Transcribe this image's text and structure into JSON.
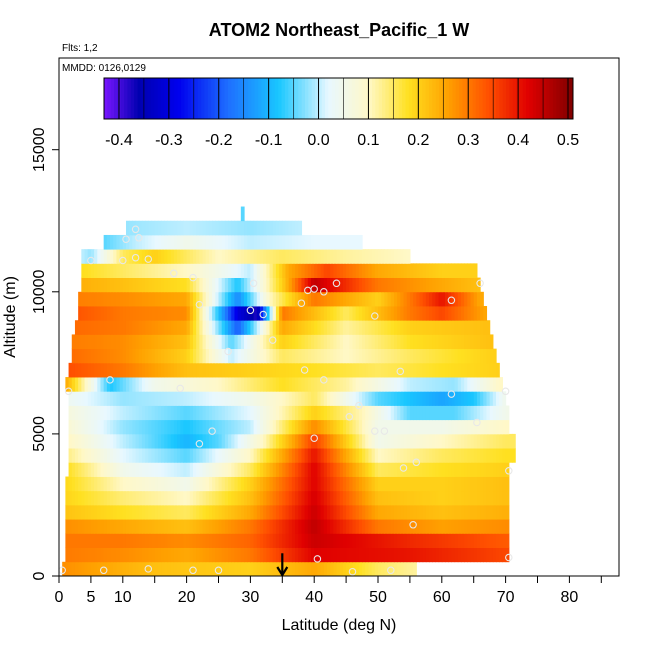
{
  "chart_data": {
    "type": "heatmap",
    "title": "ATOM2 Northeast_Pacific_1 W",
    "flights_label": "Flts: 1,2",
    "dates_label": "MMDD: 0126,0129",
    "xlabel": "Latitude (deg N)",
    "ylabel": "Altitude (m)",
    "xlim": [
      0,
      85
    ],
    "ylim": [
      0,
      18000
    ],
    "x_ticks": [
      0,
      5,
      10,
      20,
      30,
      40,
      50,
      60,
      70,
      80
    ],
    "x_minor_ticks": [
      15,
      25,
      35,
      45,
      55,
      65,
      75,
      85
    ],
    "y_ticks": [
      0,
      5000,
      10000,
      15000
    ],
    "colorbar": {
      "ticks": [
        -0.4,
        -0.3,
        -0.2,
        -0.1,
        0.0,
        0.1,
        0.2,
        0.3,
        0.4,
        0.5
      ],
      "tick_labels": [
        "-0.4",
        "-0.3",
        "-0.2",
        "-0.1",
        "0.0",
        "0.1",
        "0.2",
        "0.3",
        "0.4",
        "0.5"
      ],
      "range": [
        -0.43,
        0.51
      ],
      "colors": [
        "#7a16ff",
        "#0000b0",
        "#0000ee",
        "#1e70ff",
        "#19c7ff",
        "#e8f8ff",
        "#fff8c8",
        "#ffe020",
        "#ffa000",
        "#ff5000",
        "#e00000",
        "#800000"
      ],
      "stops": [
        -0.43,
        -0.36,
        -0.28,
        -0.18,
        -0.08,
        0.02,
        0.1,
        0.18,
        0.26,
        0.34,
        0.42,
        0.51
      ]
    },
    "grid_rows": [
      {
        "alt": 250,
        "x0": 0.5,
        "x1": 56.0,
        "pts": [
          [
            0,
            0.28
          ],
          [
            15,
            0.22
          ],
          [
            30,
            0.2
          ],
          [
            40,
            0.25
          ],
          [
            50,
            0.15
          ],
          [
            56,
            0.12
          ]
        ]
      },
      {
        "alt": 750,
        "x0": 1.0,
        "x1": 70.5,
        "pts": [
          [
            0,
            0.3
          ],
          [
            10,
            0.28
          ],
          [
            20,
            0.25
          ],
          [
            30,
            0.3
          ],
          [
            40,
            0.42
          ],
          [
            55,
            0.4
          ],
          [
            70,
            0.35
          ]
        ]
      },
      {
        "alt": 1250,
        "x0": 1.0,
        "x1": 70.5,
        "pts": [
          [
            0,
            0.3
          ],
          [
            10,
            0.3
          ],
          [
            20,
            0.28
          ],
          [
            30,
            0.32
          ],
          [
            40,
            0.44
          ],
          [
            55,
            0.38
          ],
          [
            70,
            0.33
          ]
        ]
      },
      {
        "alt": 1750,
        "x0": 1.0,
        "x1": 70.5,
        "pts": [
          [
            0,
            0.28
          ],
          [
            10,
            0.25
          ],
          [
            20,
            0.22
          ],
          [
            30,
            0.3
          ],
          [
            40,
            0.45
          ],
          [
            50,
            0.3
          ],
          [
            60,
            0.26
          ],
          [
            70,
            0.28
          ]
        ]
      },
      {
        "alt": 2250,
        "x0": 1.0,
        "x1": 70.5,
        "pts": [
          [
            0,
            0.22
          ],
          [
            10,
            0.18
          ],
          [
            20,
            0.15
          ],
          [
            30,
            0.25
          ],
          [
            40,
            0.44
          ],
          [
            50,
            0.25
          ],
          [
            60,
            0.22
          ],
          [
            70,
            0.24
          ]
        ]
      },
      {
        "alt": 2750,
        "x0": 1.0,
        "x1": 70.5,
        "pts": [
          [
            0,
            0.2
          ],
          [
            10,
            0.14
          ],
          [
            20,
            0.1
          ],
          [
            30,
            0.22
          ],
          [
            40,
            0.43
          ],
          [
            50,
            0.22
          ],
          [
            60,
            0.2
          ],
          [
            70,
            0.22
          ]
        ]
      },
      {
        "alt": 3250,
        "x0": 1.0,
        "x1": 70.5,
        "pts": [
          [
            0,
            0.2
          ],
          [
            10,
            0.1
          ],
          [
            20,
            0.05
          ],
          [
            30,
            0.2
          ],
          [
            40,
            0.42
          ],
          [
            50,
            0.2
          ],
          [
            60,
            0.2
          ],
          [
            70,
            0.22
          ]
        ]
      },
      {
        "alt": 3750,
        "x0": 1.5,
        "x1": 70.5,
        "pts": [
          [
            0,
            0.2
          ],
          [
            10,
            0.05
          ],
          [
            20,
            0.0
          ],
          [
            30,
            0.15
          ],
          [
            40,
            0.42
          ],
          [
            50,
            0.15
          ],
          [
            60,
            0.18
          ],
          [
            70,
            0.2
          ]
        ]
      },
      {
        "alt": 4250,
        "x0": 1.5,
        "x1": 71.5,
        "pts": [
          [
            0,
            0.15
          ],
          [
            10,
            0.02
          ],
          [
            20,
            -0.05
          ],
          [
            30,
            0.1
          ],
          [
            40,
            0.4
          ],
          [
            50,
            0.1
          ],
          [
            60,
            0.15
          ],
          [
            70,
            0.18
          ]
        ]
      },
      {
        "alt": 4750,
        "x0": 1.5,
        "x1": 71.5,
        "pts": [
          [
            0,
            0.12
          ],
          [
            10,
            0.0
          ],
          [
            20,
            -0.1
          ],
          [
            25,
            -0.05
          ],
          [
            32,
            0.1
          ],
          [
            40,
            0.36
          ],
          [
            50,
            0.05
          ],
          [
            60,
            0.1
          ],
          [
            70,
            0.15
          ]
        ]
      },
      {
        "alt": 5250,
        "x0": 1.5,
        "x1": 70.5,
        "pts": [
          [
            0,
            0.1
          ],
          [
            10,
            -0.02
          ],
          [
            20,
            -0.08
          ],
          [
            30,
            0.0
          ],
          [
            40,
            0.28
          ],
          [
            50,
            0.05
          ],
          [
            60,
            0.05
          ],
          [
            70,
            0.1
          ]
        ]
      },
      {
        "alt": 5750,
        "x0": 1.5,
        "x1": 70.5,
        "pts": [
          [
            0,
            0.08
          ],
          [
            10,
            0.0
          ],
          [
            20,
            -0.05
          ],
          [
            30,
            0.02
          ],
          [
            40,
            0.2
          ],
          [
            48,
            0.1
          ],
          [
            55,
            -0.05
          ],
          [
            62,
            -0.05
          ],
          [
            70,
            0.05
          ]
        ]
      },
      {
        "alt": 6250,
        "x0": 1.5,
        "x1": 70.0,
        "pts": [
          [
            0,
            0.05
          ],
          [
            10,
            -0.02
          ],
          [
            20,
            0.0
          ],
          [
            30,
            0.05
          ],
          [
            40,
            0.15
          ],
          [
            50,
            -0.05
          ],
          [
            60,
            -0.12
          ],
          [
            65,
            -0.08
          ],
          [
            70,
            0.05
          ]
        ]
      },
      {
        "alt": 6750,
        "x0": 1.0,
        "x1": 69.5,
        "pts": [
          [
            0,
            0.3
          ],
          [
            8,
            -0.08
          ],
          [
            15,
            0.05
          ],
          [
            25,
            0.1
          ],
          [
            35,
            0.18
          ],
          [
            45,
            0.12
          ],
          [
            55,
            0.0
          ],
          [
            62,
            -0.02
          ],
          [
            69,
            0.1
          ]
        ]
      },
      {
        "alt": 7250,
        "x0": 1.5,
        "x1": 69.0,
        "pts": [
          [
            0,
            0.35
          ],
          [
            10,
            0.3
          ],
          [
            20,
            0.22
          ],
          [
            30,
            0.2
          ],
          [
            40,
            0.18
          ],
          [
            50,
            0.15
          ],
          [
            60,
            0.18
          ],
          [
            69,
            0.2
          ]
        ]
      },
      {
        "alt": 7750,
        "x0": 2.0,
        "x1": 68.5,
        "pts": [
          [
            0,
            0.32
          ],
          [
            10,
            0.28
          ],
          [
            20,
            0.2
          ],
          [
            27,
            0.0
          ],
          [
            35,
            0.15
          ],
          [
            45,
            0.1
          ],
          [
            55,
            0.15
          ],
          [
            68,
            0.2
          ]
        ]
      },
      {
        "alt": 8250,
        "x0": 2.0,
        "x1": 68.0,
        "pts": [
          [
            0,
            0.3
          ],
          [
            10,
            0.28
          ],
          [
            20,
            0.22
          ],
          [
            27,
            -0.05
          ],
          [
            35,
            0.2
          ],
          [
            45,
            0.1
          ],
          [
            55,
            0.18
          ],
          [
            68,
            0.22
          ]
        ]
      },
      {
        "alt": 8750,
        "x0": 2.5,
        "x1": 67.5,
        "pts": [
          [
            0,
            0.32
          ],
          [
            10,
            0.3
          ],
          [
            20,
            0.25
          ],
          [
            28,
            -0.2
          ],
          [
            35,
            0.25
          ],
          [
            45,
            0.12
          ],
          [
            55,
            0.2
          ],
          [
            67,
            0.22
          ]
        ]
      },
      {
        "alt": 9250,
        "x0": 3.0,
        "x1": 67.0,
        "pts": [
          [
            0,
            0.35
          ],
          [
            10,
            0.3
          ],
          [
            20,
            0.28
          ],
          [
            28,
            -0.3
          ],
          [
            31,
            -0.38
          ],
          [
            35,
            0.3
          ],
          [
            45,
            0.15
          ],
          [
            55,
            0.3
          ],
          [
            60,
            0.35
          ],
          [
            67,
            0.25
          ]
        ]
      },
      {
        "alt": 9750,
        "x0": 3.0,
        "x1": 66.5,
        "pts": [
          [
            0,
            0.3
          ],
          [
            10,
            0.28
          ],
          [
            20,
            0.25
          ],
          [
            28,
            -0.15
          ],
          [
            33,
            0.1
          ],
          [
            40,
            0.3
          ],
          [
            50,
            0.2
          ],
          [
            60,
            0.4
          ],
          [
            66,
            0.25
          ]
        ]
      },
      {
        "alt": 10250,
        "x0": 3.5,
        "x1": 66.0,
        "pts": [
          [
            0,
            0.25
          ],
          [
            10,
            0.22
          ],
          [
            20,
            0.18
          ],
          [
            28,
            -0.08
          ],
          [
            35,
            0.2
          ],
          [
            40,
            0.45
          ],
          [
            50,
            0.3
          ],
          [
            60,
            0.25
          ],
          [
            66,
            0.22
          ]
        ]
      },
      {
        "alt": 10750,
        "x0": 3.5,
        "x1": 65.5,
        "pts": [
          [
            0,
            0.2
          ],
          [
            10,
            0.15
          ],
          [
            20,
            0.1
          ],
          [
            30,
            0.0
          ],
          [
            36,
            0.25
          ],
          [
            42,
            0.35
          ],
          [
            50,
            0.25
          ],
          [
            60,
            0.2
          ],
          [
            65,
            0.2
          ]
        ]
      },
      {
        "alt": 11250,
        "x0": 3.5,
        "x1": 55.0,
        "pts": [
          [
            0,
            0.05
          ],
          [
            5,
            -0.02
          ],
          [
            10,
            0.15
          ],
          [
            15,
            0.2
          ],
          [
            25,
            0.1
          ],
          [
            35,
            0.15
          ],
          [
            45,
            0.12
          ],
          [
            55,
            0.1
          ]
        ]
      },
      {
        "alt": 11750,
        "x0": 7.0,
        "x1": 47.5,
        "pts": [
          [
            7,
            -0.05
          ],
          [
            12,
            0.0
          ],
          [
            20,
            0.05
          ],
          [
            30,
            0.0
          ],
          [
            40,
            0.02
          ],
          [
            47,
            0.02
          ]
        ]
      },
      {
        "alt": 12250,
        "x0": 10.5,
        "x1": 38.0,
        "pts": [
          [
            10,
            -0.02
          ],
          [
            20,
            0.0
          ],
          [
            30,
            -0.02
          ],
          [
            38,
            0.0
          ]
        ]
      },
      {
        "alt": 12750,
        "x0": 28.5,
        "x1": 29.0,
        "pts": [
          [
            28,
            -0.05
          ],
          [
            29,
            -0.05
          ]
        ]
      }
    ],
    "flight_points": [
      [
        0.5,
        200
      ],
      [
        7,
        200
      ],
      [
        14,
        250
      ],
      [
        21,
        200
      ],
      [
        25,
        200
      ],
      [
        46,
        150
      ],
      [
        52,
        200
      ],
      [
        40.5,
        600
      ],
      [
        70.5,
        650
      ],
      [
        55.5,
        1800
      ],
      [
        54,
        3800
      ],
      [
        56,
        4000
      ],
      [
        70.5,
        3700
      ],
      [
        40,
        4850
      ],
      [
        22,
        4650
      ],
      [
        24,
        5100
      ],
      [
        49.5,
        5100
      ],
      [
        51,
        5100
      ],
      [
        65.5,
        5400
      ],
      [
        45.5,
        5600
      ],
      [
        47,
        6000
      ],
      [
        70,
        6500
      ],
      [
        1.5,
        6500
      ],
      [
        8,
        6900
      ],
      [
        19,
        6600
      ],
      [
        41.5,
        6900
      ],
      [
        61.5,
        6400
      ],
      [
        38.5,
        7250
      ],
      [
        53.5,
        7200
      ],
      [
        26.5,
        7900
      ],
      [
        33.5,
        8300
      ],
      [
        49.5,
        9150
      ],
      [
        30,
        9350
      ],
      [
        32,
        9200
      ],
      [
        22,
        9550
      ],
      [
        38,
        9600
      ],
      [
        61.5,
        9700
      ],
      [
        39,
        10050
      ],
      [
        40,
        10100
      ],
      [
        41.5,
        10000
      ],
      [
        43.5,
        10300
      ],
      [
        30.5,
        10300
      ],
      [
        66,
        10300
      ],
      [
        18,
        10650
      ],
      [
        21,
        10500
      ],
      [
        5,
        11100
      ],
      [
        10,
        11100
      ],
      [
        12,
        11200
      ],
      [
        14,
        11150
      ],
      [
        10.5,
        11850
      ],
      [
        12.5,
        11900
      ],
      [
        12,
        12200
      ]
    ],
    "marker": {
      "x": 35,
      "from": 800,
      "to": 0
    }
  }
}
